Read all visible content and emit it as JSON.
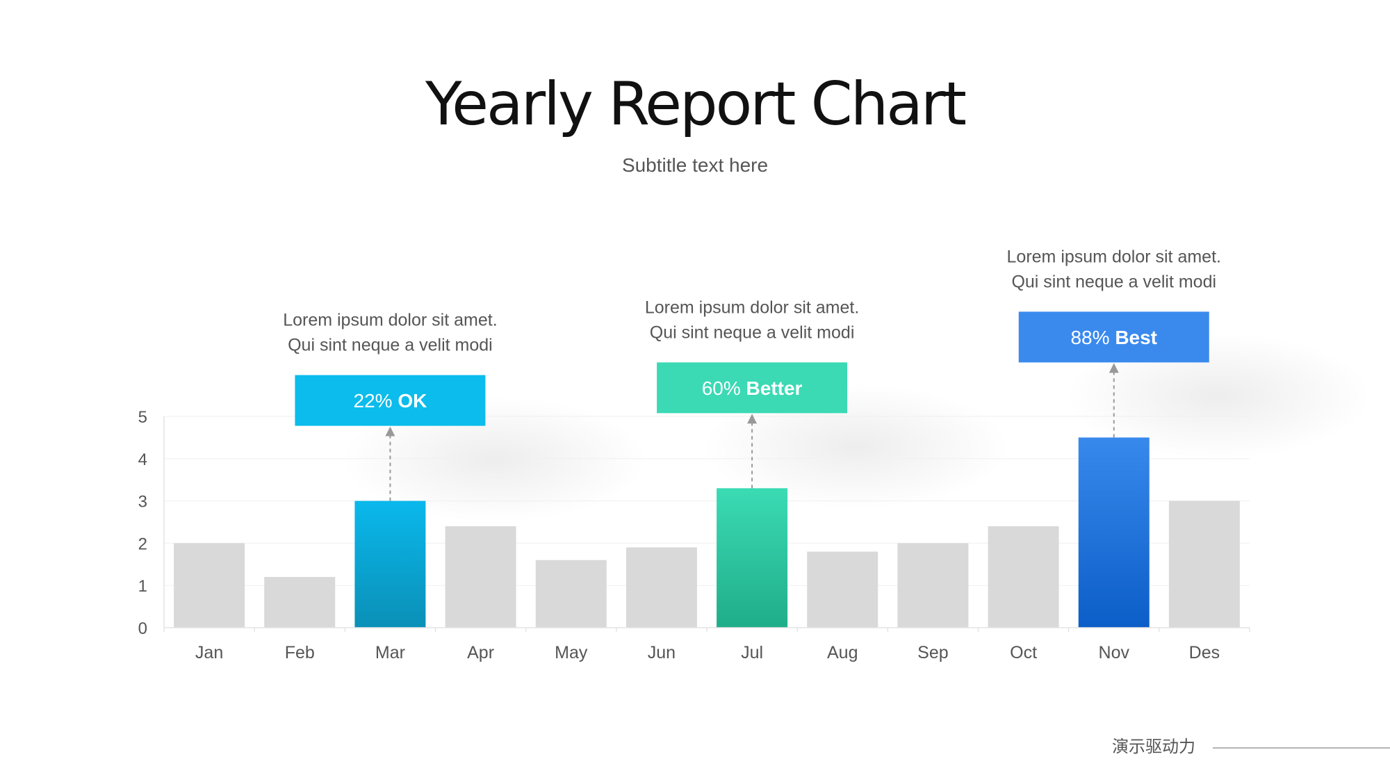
{
  "title": "Yearly Report Chart",
  "subtitle": "Subtitle text here",
  "footer": {
    "text": "演示驱动力"
  },
  "colors": {
    "bar_default": "#d9d9d9",
    "ok_top": "#0ab8ec",
    "ok_bottom": "#0a90b7",
    "better_top": "#3bdbb4",
    "better_bottom": "#1fad89",
    "best_top": "#3889ec",
    "best_bottom": "#0c5ec8",
    "ok_box": "#0bbcec",
    "better_box": "#3bd9b4",
    "best_box": "#3a8aee"
  },
  "chart_data": {
    "type": "bar",
    "categories": [
      "Jan",
      "Feb",
      "Mar",
      "Apr",
      "May",
      "Jun",
      "Jul",
      "Aug",
      "Sep",
      "Oct",
      "Nov",
      "Des"
    ],
    "values": [
      2.0,
      1.2,
      3.0,
      2.4,
      1.6,
      1.9,
      3.3,
      1.8,
      2.0,
      2.4,
      4.5,
      3.0
    ],
    "ylim": [
      0,
      5
    ],
    "yticks": [
      0,
      1,
      2,
      3,
      4,
      5
    ],
    "grid": true,
    "annotations": [
      {
        "category": "Mar",
        "percent": "22%",
        "label": "OK",
        "line1": "Lorem ipsum dolor sit amet.",
        "line2": "Qui sint neque a velit modi",
        "style": "ok"
      },
      {
        "category": "Jul",
        "percent": "60%",
        "label": "Better",
        "line1": "Lorem ipsum dolor sit amet.",
        "line2": "Qui sint neque a velit modi",
        "style": "better"
      },
      {
        "category": "Nov",
        "percent": "88%",
        "label": "Best",
        "line1": "Lorem ipsum dolor sit amet.",
        "line2": "Qui sint neque a velit modi",
        "style": "best"
      }
    ]
  }
}
